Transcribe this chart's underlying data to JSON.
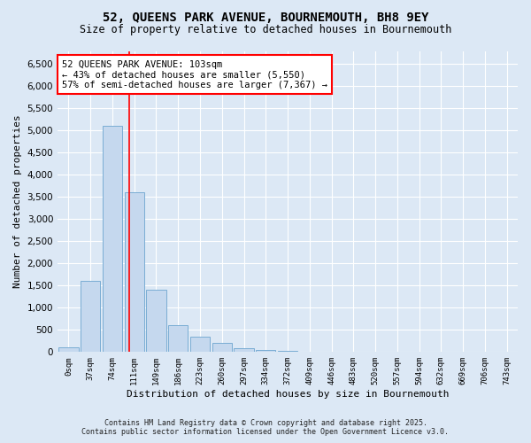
{
  "title_line1": "52, QUEENS PARK AVENUE, BOURNEMOUTH, BH8 9EY",
  "title_line2": "Size of property relative to detached houses in Bournemouth",
  "xlabel": "Distribution of detached houses by size in Bournemouth",
  "ylabel": "Number of detached properties",
  "bar_color": "#c5d8ee",
  "bar_edge_color": "#7aadd4",
  "categories": [
    "0sqm",
    "37sqm",
    "74sqm",
    "111sqm",
    "149sqm",
    "186sqm",
    "223sqm",
    "260sqm",
    "297sqm",
    "334sqm",
    "372sqm",
    "409sqm",
    "446sqm",
    "483sqm",
    "520sqm",
    "557sqm",
    "594sqm",
    "632sqm",
    "669sqm",
    "706sqm",
    "743sqm"
  ],
  "values": [
    100,
    1600,
    5100,
    3600,
    1400,
    600,
    350,
    200,
    80,
    50,
    30,
    15,
    10,
    8,
    5,
    4,
    3,
    2,
    1,
    1,
    1
  ],
  "red_line_x": 2.78,
  "annotation_text": "52 QUEENS PARK AVENUE: 103sqm\n← 43% of detached houses are smaller (5,550)\n57% of semi-detached houses are larger (7,367) →",
  "ylim": [
    0,
    6800
  ],
  "yticks": [
    0,
    500,
    1000,
    1500,
    2000,
    2500,
    3000,
    3500,
    4000,
    4500,
    5000,
    5500,
    6000,
    6500
  ],
  "footer_line1": "Contains HM Land Registry data © Crown copyright and database right 2025.",
  "footer_line2": "Contains public sector information licensed under the Open Government Licence v3.0.",
  "background_color": "#dce8f5",
  "plot_bg_color": "#dce8f5",
  "grid_color": "#ffffff"
}
